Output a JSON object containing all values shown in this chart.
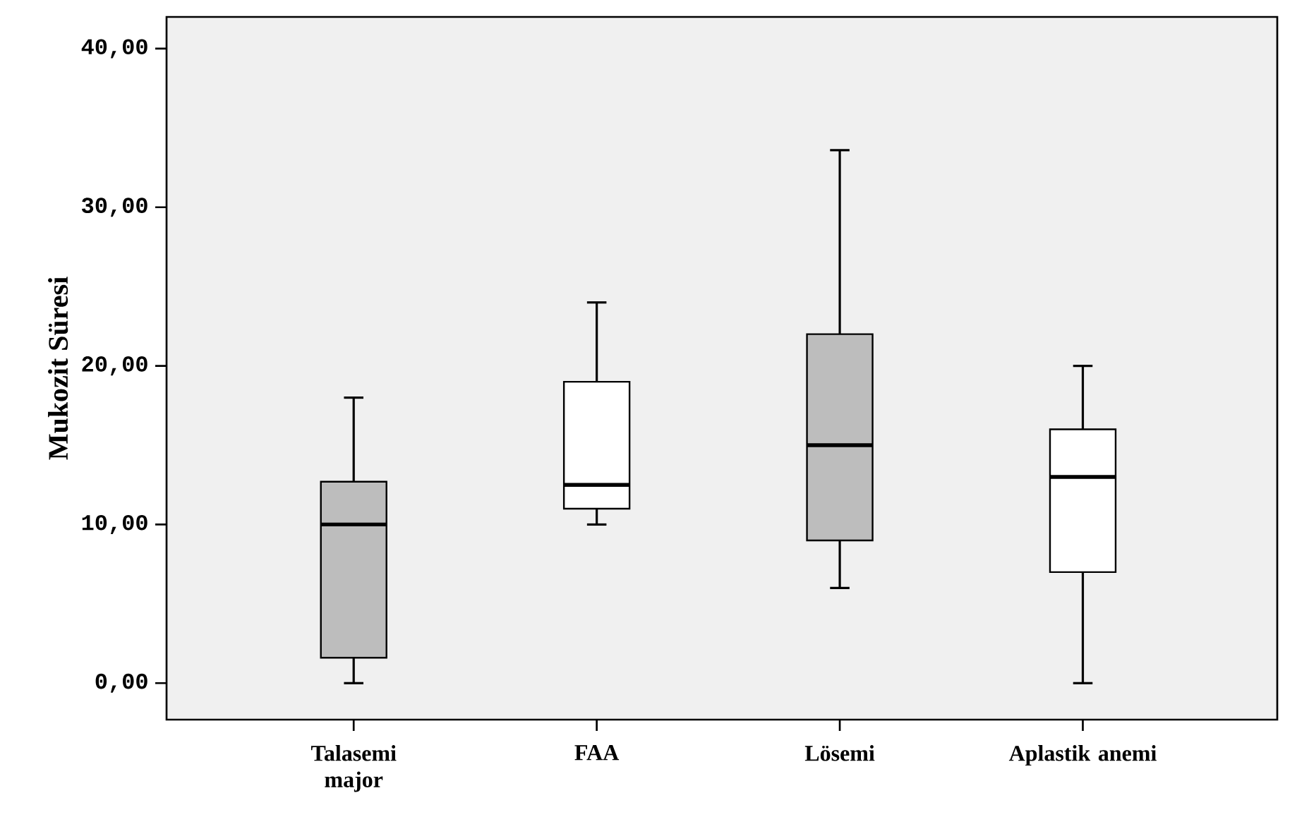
{
  "chart_data": {
    "type": "box",
    "ylabel": "Mukozit  Süresi",
    "categories": [
      "Talasemi major",
      "FAA",
      "Lösemi",
      "Aplastik anemi"
    ],
    "boxes": [
      {
        "low": 0,
        "q1": 1.6,
        "median": 10.0,
        "q3": 12.7,
        "high": 18.0
      },
      {
        "low": 10.0,
        "q1": 11.0,
        "median": 12.5,
        "q3": 19.0,
        "high": 24.0
      },
      {
        "low": 6.0,
        "q1": 9.0,
        "median": 15.0,
        "q3": 22.0,
        "high": 33.6
      },
      {
        "low": 0,
        "q1": 7.0,
        "median": 13.0,
        "q3": 16.0,
        "high": 20.0
      }
    ],
    "colors": [
      "#bdbdbd",
      "#ffffff",
      "#bdbdbd",
      "#ffffff"
    ],
    "ylim": [
      -2.3,
      42
    ],
    "yticks": [
      {
        "value": 0,
        "label": "0,00"
      },
      {
        "value": 10,
        "label": "10,00"
      },
      {
        "value": 20,
        "label": "20,00"
      },
      {
        "value": 30,
        "label": "30,00"
      },
      {
        "value": 40,
        "label": "40,00"
      }
    ]
  }
}
